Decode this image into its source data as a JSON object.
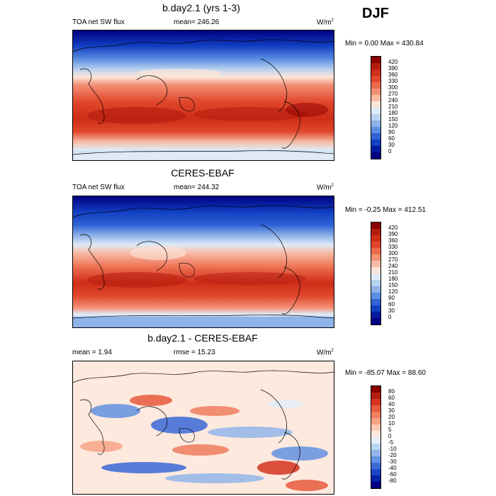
{
  "season": "DJF",
  "panels": [
    {
      "title": "b.day2.1 (yrs 1-3)",
      "left_label": "TOA net SW flux",
      "center_label": "mean= 246.26",
      "units": "W/m",
      "units_sup": "2",
      "minmax": "Min =   0.00 Max = 430.84",
      "colorbar_labels": [
        "420",
        "390",
        "360",
        "330",
        "300",
        "270",
        "240",
        "210",
        "180",
        "150",
        "120",
        "90",
        "60",
        "30",
        "0"
      ],
      "colors": [
        "#8b0000",
        "#b31d0f",
        "#cf2d18",
        "#e0472b",
        "#ec6a4c",
        "#f39076",
        "#f8bca6",
        "#fde5d8",
        "#dfeaf6",
        "#b9d2ef",
        "#8fb3e8",
        "#5b8de0",
        "#2f63d6",
        "#113fc2",
        "#001aa0",
        "#000080"
      ]
    },
    {
      "title": "CERES-EBAF",
      "left_label": "TOA net SW flux",
      "center_label": "mean= 244.32",
      "units": "W/m",
      "units_sup": "2",
      "minmax": "Min =  -0.25 Max = 412.51",
      "colorbar_labels": [
        "420",
        "390",
        "360",
        "330",
        "300",
        "270",
        "240",
        "210",
        "180",
        "150",
        "120",
        "90",
        "60",
        "30",
        "0"
      ],
      "colors": [
        "#8b0000",
        "#b31d0f",
        "#cf2d18",
        "#e0472b",
        "#ec6a4c",
        "#f39076",
        "#f8bca6",
        "#fde5d8",
        "#dfeaf6",
        "#b9d2ef",
        "#8fb3e8",
        "#5b8de0",
        "#2f63d6",
        "#113fc2",
        "#001aa0",
        "#000080"
      ]
    },
    {
      "title": "b.day2.1 - CERES-EBAF",
      "left_label": "mean =   1.94",
      "center_label": "rmse =  15.23",
      "units": "W/m",
      "units_sup": "2",
      "minmax": "Min = -85.07 Max =  88.60",
      "colorbar_labels": [
        "80",
        "60",
        "40",
        "30",
        "20",
        "10",
        "5",
        "0",
        "-5",
        "-10",
        "-20",
        "-30",
        "-40",
        "-60",
        "-80"
      ],
      "colors": [
        "#8b0000",
        "#b31d0f",
        "#d73521",
        "#e85a3c",
        "#f07e5f",
        "#f6a488",
        "#fbc9b4",
        "#fde9de",
        "#e2eefa",
        "#bcd5f2",
        "#93b6ea",
        "#6592e1",
        "#3b6ad7",
        "#1a45c4",
        "#0022a8",
        "#000080"
      ]
    }
  ],
  "chart_data": [
    {
      "type": "heatmap",
      "title": "b.day2.1 (yrs 1-3)",
      "subtitle": "TOA net SW flux",
      "season": "DJF",
      "mean": 246.26,
      "min": 0.0,
      "max": 430.84,
      "units": "W/m2",
      "levels": [
        0,
        30,
        60,
        90,
        120,
        150,
        180,
        210,
        240,
        270,
        300,
        330,
        360,
        390,
        420
      ]
    },
    {
      "type": "heatmap",
      "title": "CERES-EBAF",
      "subtitle": "TOA net SW flux",
      "season": "DJF",
      "mean": 244.32,
      "min": -0.25,
      "max": 412.51,
      "units": "W/m2",
      "levels": [
        0,
        30,
        60,
        90,
        120,
        150,
        180,
        210,
        240,
        270,
        300,
        330,
        360,
        390,
        420
      ]
    },
    {
      "type": "heatmap",
      "title": "b.day2.1 - CERES-EBAF",
      "season": "DJF",
      "mean": 1.94,
      "rmse": 15.23,
      "min": -85.07,
      "max": 88.6,
      "units": "W/m2",
      "levels": [
        -80,
        -60,
        -40,
        -30,
        -20,
        -10,
        -5,
        0,
        5,
        10,
        20,
        30,
        40,
        60,
        80
      ]
    }
  ]
}
